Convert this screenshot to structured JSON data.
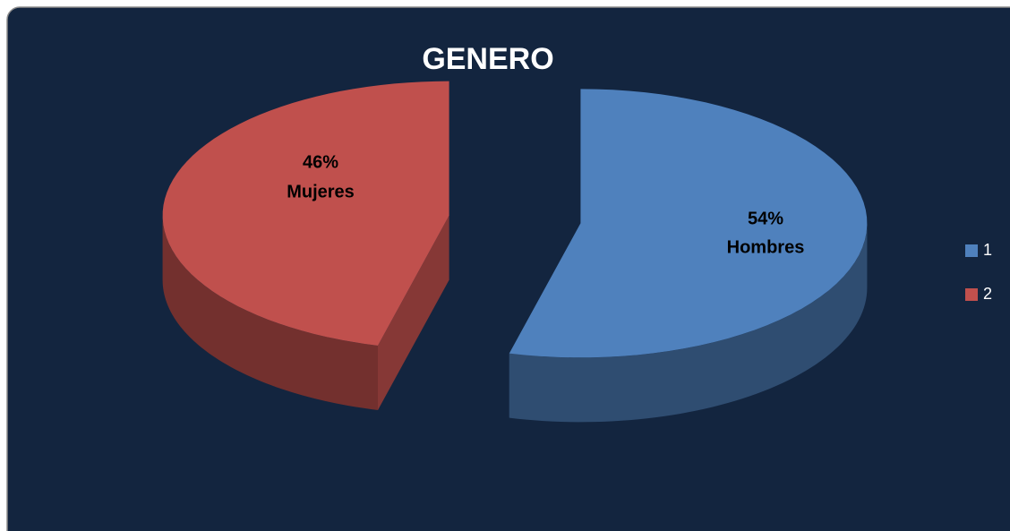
{
  "chart_data": {
    "type": "pie",
    "title": "GENERO",
    "categories": [
      "1",
      "2"
    ],
    "values": [
      54,
      46
    ],
    "value_labels": [
      "54%",
      "46%"
    ],
    "slice_labels": [
      "Hombres",
      "Mujeres"
    ],
    "colors": [
      "#4f81bd",
      "#c0504d"
    ],
    "legend": "right"
  }
}
